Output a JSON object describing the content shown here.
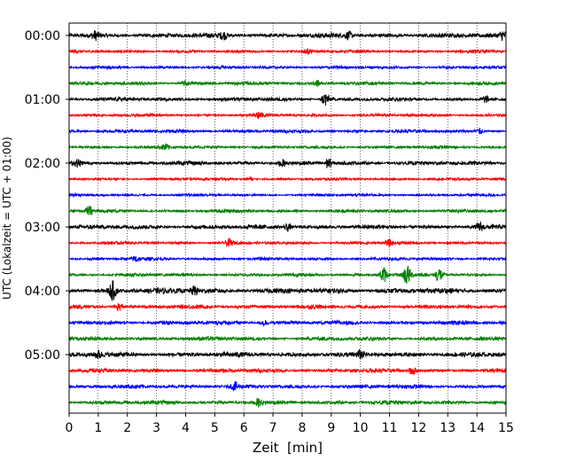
{
  "chart_data": {
    "type": "line",
    "title": "",
    "xlabel": "Zeit  [min]",
    "ylabel": "UTC (Lokalzeit = UTC + 01:00)",
    "xlim": [
      0,
      15
    ],
    "x_ticks": [
      "0",
      "1",
      "2",
      "3",
      "4",
      "5",
      "6",
      "7",
      "8",
      "9",
      "10",
      "11",
      "12",
      "13",
      "14",
      "15"
    ],
    "y_ticks": [
      "00:00",
      "01:00",
      "02:00",
      "03:00",
      "04:00",
      "05:00"
    ],
    "grid": "vertical dotted",
    "trace_interval_minutes": 15,
    "trace_count": 24,
    "trace_colors": [
      "#000000",
      "#ff0000",
      "#0000ff",
      "#008000"
    ],
    "noise_amplitude": [
      0.28,
      0.18,
      0.18,
      0.2,
      0.22,
      0.18,
      0.2,
      0.18,
      0.24,
      0.16,
      0.16,
      0.2,
      0.26,
      0.18,
      0.18,
      0.2,
      0.32,
      0.24,
      0.24,
      0.24,
      0.3,
      0.24,
      0.24,
      0.24
    ],
    "events": [
      {
        "trace": 0,
        "x": 0.9,
        "amp": 0.45
      },
      {
        "trace": 0,
        "x": 5.3,
        "amp": 0.4
      },
      {
        "trace": 0,
        "x": 9.6,
        "amp": 0.4
      },
      {
        "trace": 0,
        "x": 14.9,
        "amp": 0.5
      },
      {
        "trace": 1,
        "x": 8.2,
        "amp": 0.25
      },
      {
        "trace": 3,
        "x": 4.0,
        "amp": 0.3
      },
      {
        "trace": 3,
        "x": 8.5,
        "amp": 0.35
      },
      {
        "trace": 4,
        "x": 8.8,
        "amp": 0.85
      },
      {
        "trace": 4,
        "x": 14.3,
        "amp": 0.4
      },
      {
        "trace": 5,
        "x": 6.5,
        "amp": 0.4
      },
      {
        "trace": 6,
        "x": 14.1,
        "amp": 0.3
      },
      {
        "trace": 7,
        "x": 3.3,
        "amp": 0.35
      },
      {
        "trace": 8,
        "x": 0.3,
        "amp": 0.35
      },
      {
        "trace": 8,
        "x": 7.3,
        "amp": 0.4
      },
      {
        "trace": 8,
        "x": 8.9,
        "amp": 0.55
      },
      {
        "trace": 9,
        "x": 6.2,
        "amp": 0.3
      },
      {
        "trace": 11,
        "x": 0.7,
        "amp": 0.55
      },
      {
        "trace": 12,
        "x": 7.5,
        "amp": 0.45
      },
      {
        "trace": 12,
        "x": 14.1,
        "amp": 0.45
      },
      {
        "trace": 13,
        "x": 5.5,
        "amp": 0.4
      },
      {
        "trace": 13,
        "x": 11.0,
        "amp": 0.35
      },
      {
        "trace": 14,
        "x": 2.3,
        "amp": 0.4
      },
      {
        "trace": 15,
        "x": 10.8,
        "amp": 0.95
      },
      {
        "trace": 15,
        "x": 11.6,
        "amp": 1.2
      },
      {
        "trace": 15,
        "x": 12.7,
        "amp": 0.9
      },
      {
        "trace": 16,
        "x": 1.5,
        "amp": 1.1
      },
      {
        "trace": 16,
        "x": 4.3,
        "amp": 0.5
      },
      {
        "trace": 17,
        "x": 1.7,
        "amp": 0.45
      },
      {
        "trace": 18,
        "x": 6.7,
        "amp": 0.35
      },
      {
        "trace": 20,
        "x": 1.0,
        "amp": 0.45
      },
      {
        "trace": 20,
        "x": 10.0,
        "amp": 0.4
      },
      {
        "trace": 21,
        "x": 11.8,
        "amp": 0.5
      },
      {
        "trace": 22,
        "x": 5.7,
        "amp": 0.45
      },
      {
        "trace": 23,
        "x": 6.5,
        "amp": 0.4
      }
    ]
  }
}
